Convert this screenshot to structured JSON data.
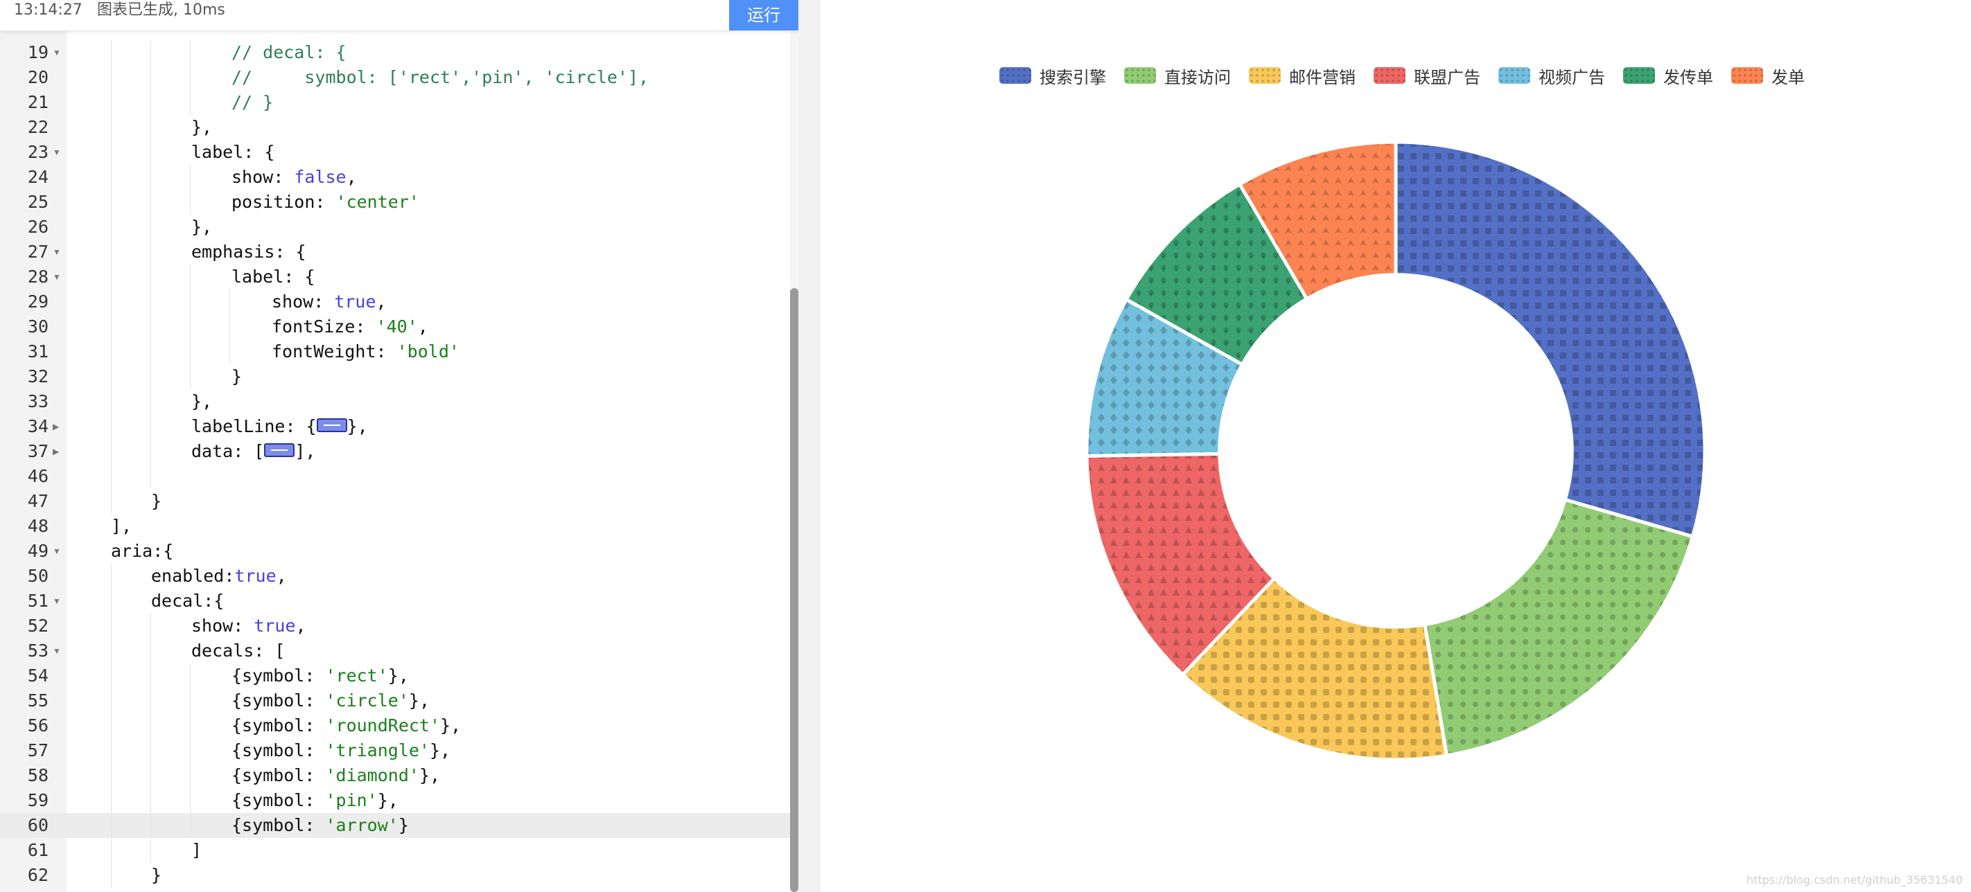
{
  "status": {
    "time": "13:14:27",
    "message": "图表已生成, 10ms",
    "run_label": "运行"
  },
  "editor": {
    "active_line": "60",
    "lines": [
      {
        "num": "19",
        "fold": true,
        "indent": 4,
        "tokens": [
          {
            "t": "// decal: {",
            "c": "comment"
          }
        ]
      },
      {
        "num": "20",
        "fold": false,
        "indent": 4,
        "tokens": [
          {
            "t": "//     symbol: ['rect','pin', 'circle'],",
            "c": "comment"
          }
        ]
      },
      {
        "num": "21",
        "fold": false,
        "indent": 4,
        "tokens": [
          {
            "t": "// }",
            "c": "comment"
          }
        ]
      },
      {
        "num": "22",
        "fold": false,
        "indent": 3,
        "tokens": [
          {
            "t": "},",
            "c": ""
          }
        ]
      },
      {
        "num": "23",
        "fold": true,
        "indent": 3,
        "tokens": [
          {
            "t": "label: {",
            "c": ""
          }
        ]
      },
      {
        "num": "24",
        "fold": false,
        "indent": 4,
        "tokens": [
          {
            "t": "show: ",
            "c": ""
          },
          {
            "t": "false",
            "c": "bool"
          },
          {
            "t": ",",
            "c": ""
          }
        ]
      },
      {
        "num": "25",
        "fold": false,
        "indent": 4,
        "tokens": [
          {
            "t": "position: ",
            "c": ""
          },
          {
            "t": "'center'",
            "c": "string"
          }
        ]
      },
      {
        "num": "26",
        "fold": false,
        "indent": 3,
        "tokens": [
          {
            "t": "},",
            "c": ""
          }
        ]
      },
      {
        "num": "27",
        "fold": true,
        "indent": 3,
        "tokens": [
          {
            "t": "emphasis: {",
            "c": ""
          }
        ]
      },
      {
        "num": "28",
        "fold": true,
        "indent": 4,
        "tokens": [
          {
            "t": "label: {",
            "c": ""
          }
        ]
      },
      {
        "num": "29",
        "fold": false,
        "indent": 5,
        "tokens": [
          {
            "t": "show: ",
            "c": ""
          },
          {
            "t": "true",
            "c": "bool"
          },
          {
            "t": ",",
            "c": ""
          }
        ]
      },
      {
        "num": "30",
        "fold": false,
        "indent": 5,
        "tokens": [
          {
            "t": "fontSize: ",
            "c": ""
          },
          {
            "t": "'40'",
            "c": "string"
          },
          {
            "t": ",",
            "c": ""
          }
        ]
      },
      {
        "num": "31",
        "fold": false,
        "indent": 5,
        "tokens": [
          {
            "t": "fontWeight: ",
            "c": ""
          },
          {
            "t": "'bold'",
            "c": "string"
          }
        ]
      },
      {
        "num": "32",
        "fold": false,
        "indent": 4,
        "tokens": [
          {
            "t": "}",
            "c": ""
          }
        ]
      },
      {
        "num": "33",
        "fold": false,
        "indent": 3,
        "tokens": [
          {
            "t": "},",
            "c": ""
          }
        ]
      },
      {
        "num": "34",
        "fold": "collapsed",
        "indent": 3,
        "tokens": [
          {
            "t": "labelLine: {",
            "c": ""
          },
          {
            "t": "",
            "c": "widget"
          },
          {
            "t": "},",
            "c": ""
          }
        ]
      },
      {
        "num": "37",
        "fold": "collapsed",
        "indent": 3,
        "tokens": [
          {
            "t": "data: [",
            "c": ""
          },
          {
            "t": "",
            "c": "widget"
          },
          {
            "t": "],",
            "c": ""
          }
        ]
      },
      {
        "num": "46",
        "fold": false,
        "indent": 3,
        "tokens": []
      },
      {
        "num": "47",
        "fold": false,
        "indent": 2,
        "tokens": [
          {
            "t": "}",
            "c": ""
          }
        ]
      },
      {
        "num": "48",
        "fold": false,
        "indent": 1,
        "tokens": [
          {
            "t": "],",
            "c": ""
          }
        ]
      },
      {
        "num": "49",
        "fold": true,
        "indent": 1,
        "tokens": [
          {
            "t": "aria:{",
            "c": ""
          }
        ]
      },
      {
        "num": "50",
        "fold": false,
        "indent": 2,
        "tokens": [
          {
            "t": "enabled:",
            "c": ""
          },
          {
            "t": "true",
            "c": "bool"
          },
          {
            "t": ",",
            "c": ""
          }
        ]
      },
      {
        "num": "51",
        "fold": true,
        "indent": 2,
        "tokens": [
          {
            "t": "decal:{",
            "c": ""
          }
        ]
      },
      {
        "num": "52",
        "fold": false,
        "indent": 3,
        "tokens": [
          {
            "t": "show: ",
            "c": ""
          },
          {
            "t": "true",
            "c": "bool"
          },
          {
            "t": ",",
            "c": ""
          }
        ]
      },
      {
        "num": "53",
        "fold": true,
        "indent": 3,
        "tokens": [
          {
            "t": "decals: [",
            "c": ""
          }
        ]
      },
      {
        "num": "54",
        "fold": false,
        "indent": 4,
        "tokens": [
          {
            "t": "{symbol: ",
            "c": ""
          },
          {
            "t": "'rect'",
            "c": "string"
          },
          {
            "t": "},",
            "c": ""
          }
        ]
      },
      {
        "num": "55",
        "fold": false,
        "indent": 4,
        "tokens": [
          {
            "t": "{symbol: ",
            "c": ""
          },
          {
            "t": "'circle'",
            "c": "string"
          },
          {
            "t": "},",
            "c": ""
          }
        ]
      },
      {
        "num": "56",
        "fold": false,
        "indent": 4,
        "tokens": [
          {
            "t": "{symbol: ",
            "c": ""
          },
          {
            "t": "'roundRect'",
            "c": "string"
          },
          {
            "t": "},",
            "c": ""
          }
        ]
      },
      {
        "num": "57",
        "fold": false,
        "indent": 4,
        "tokens": [
          {
            "t": "{symbol: ",
            "c": ""
          },
          {
            "t": "'triangle'",
            "c": "string"
          },
          {
            "t": "},",
            "c": ""
          }
        ]
      },
      {
        "num": "58",
        "fold": false,
        "indent": 4,
        "tokens": [
          {
            "t": "{symbol: ",
            "c": ""
          },
          {
            "t": "'diamond'",
            "c": "string"
          },
          {
            "t": "},",
            "c": ""
          }
        ]
      },
      {
        "num": "59",
        "fold": false,
        "indent": 4,
        "tokens": [
          {
            "t": "{symbol: ",
            "c": ""
          },
          {
            "t": "'pin'",
            "c": "string"
          },
          {
            "t": "},",
            "c": ""
          }
        ]
      },
      {
        "num": "60",
        "fold": false,
        "indent": 4,
        "tokens": [
          {
            "t": "{symbol: ",
            "c": ""
          },
          {
            "t": "'arrow'",
            "c": "string"
          },
          {
            "t": "}",
            "c": ""
          }
        ]
      },
      {
        "num": "61",
        "fold": false,
        "indent": 3,
        "tokens": [
          {
            "t": "]",
            "c": ""
          }
        ]
      },
      {
        "num": "62",
        "fold": false,
        "indent": 2,
        "tokens": [
          {
            "t": "}",
            "c": ""
          }
        ]
      },
      {
        "num": "63",
        "fold": false,
        "indent": 1,
        "tokens": []
      }
    ]
  },
  "chart_data": {
    "type": "pie",
    "inner_radius_ratio": 0.57,
    "categories": [
      "搜索引擎",
      "直接访问",
      "邮件营销",
      "联盟广告",
      "视频广告",
      "发传单",
      "发单"
    ],
    "values": [
      28,
      17,
      14,
      12,
      8,
      8,
      8
    ],
    "colors": [
      "#5470c6",
      "#91cc75",
      "#fac858",
      "#ee6666",
      "#73c0de",
      "#3ba272",
      "#fc8452"
    ],
    "decals": [
      "rect",
      "circle",
      "roundRect",
      "triangle",
      "diamond",
      "pin",
      "arrow"
    ],
    "legend_position": "top-center"
  },
  "watermark": "https://blog.csdn.net/github_35631540"
}
